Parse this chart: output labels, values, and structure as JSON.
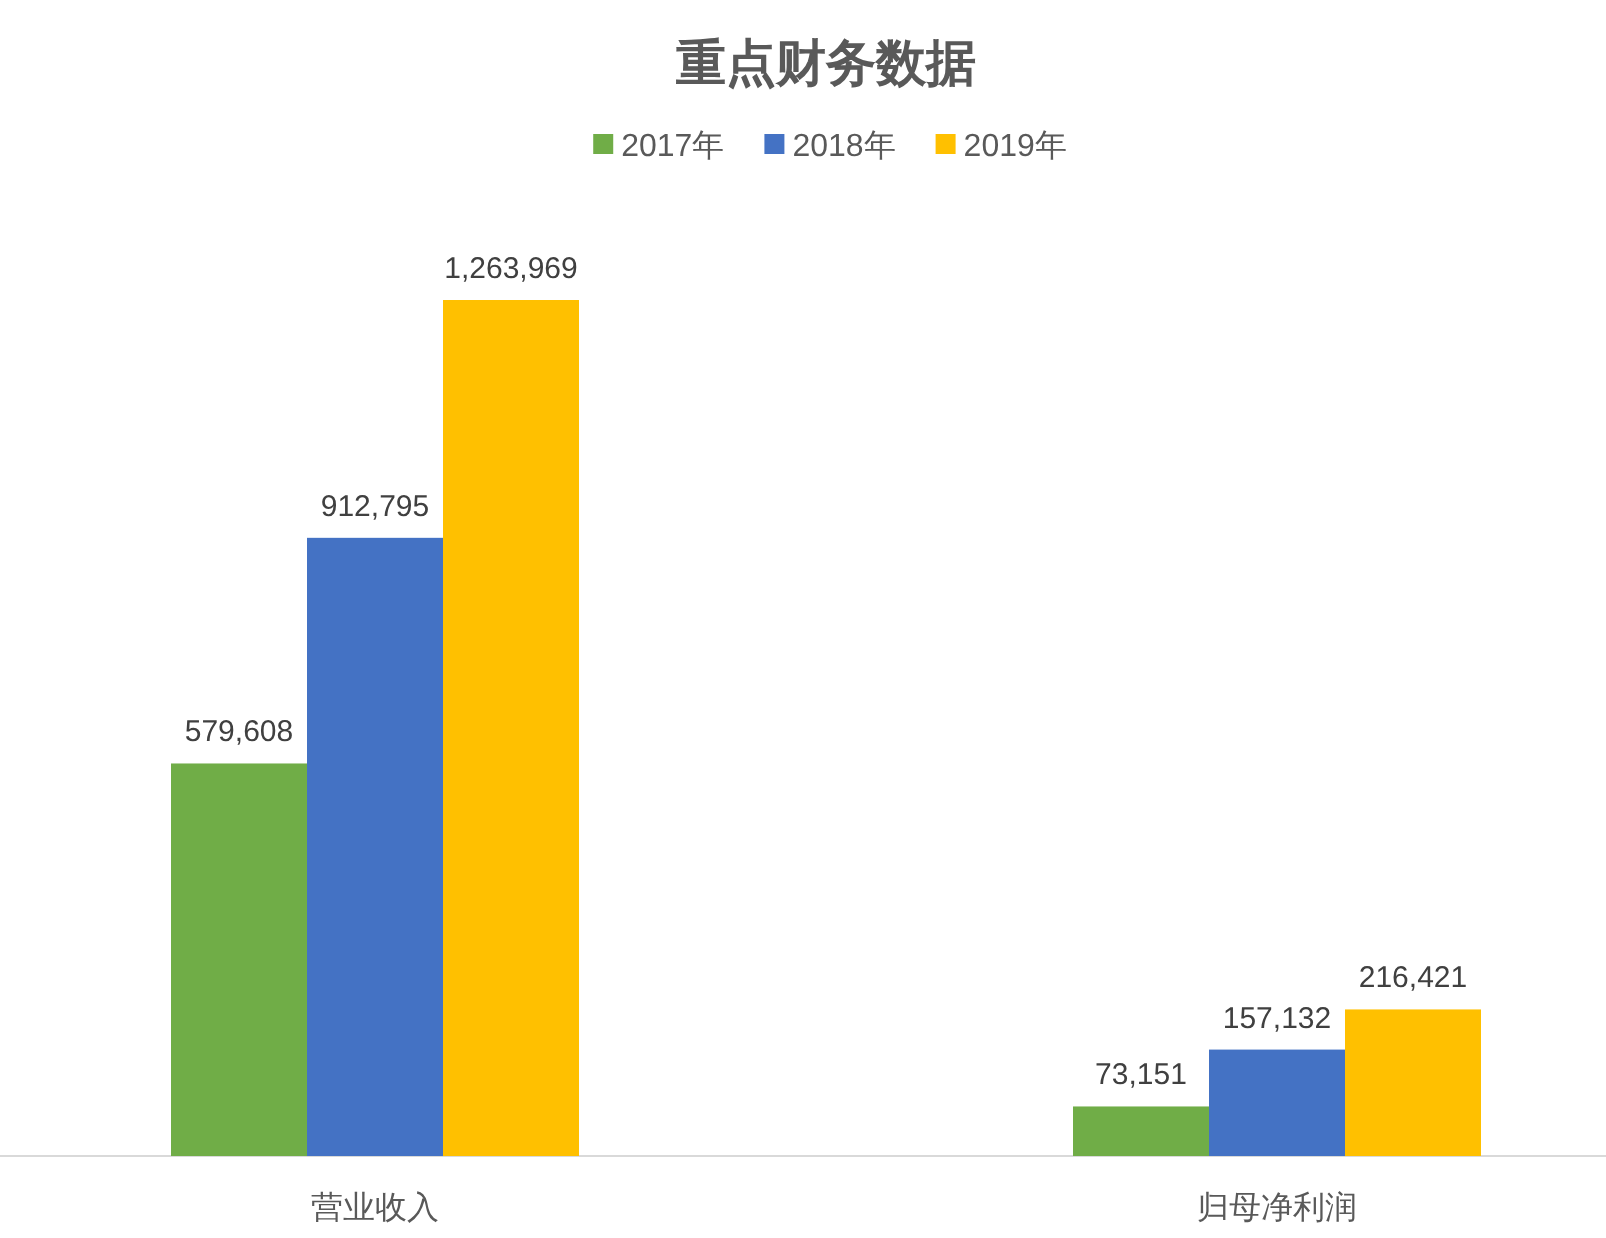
{
  "chart_data": {
    "type": "bar",
    "title": "重点财务数据",
    "categories": [
      "营业收入",
      "归母净利润"
    ],
    "series": [
      {
        "name": "2017年",
        "color": "#70ad47",
        "values": [
          579608,
          73151
        ],
        "value_labels": [
          "579,608",
          "73,151"
        ]
      },
      {
        "name": "2018年",
        "color": "#4472c4",
        "values": [
          912795,
          157132
        ],
        "value_labels": [
          "912,795",
          "157,132"
        ]
      },
      {
        "name": "2019年",
        "color": "#ffc000",
        "values": [
          1263969,
          216421
        ],
        "value_labels": [
          "1,263,969",
          "216,421"
        ]
      }
    ],
    "legend": "top"
  }
}
